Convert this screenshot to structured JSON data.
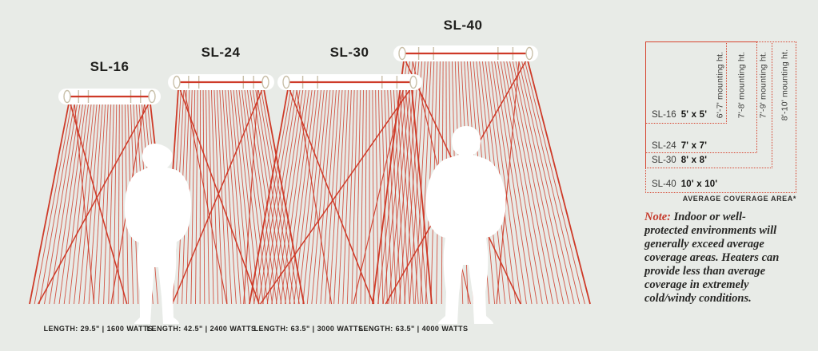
{
  "colors": {
    "background": "#e8ebe7",
    "red": "#ce3a28",
    "beige": "#c8bfa8",
    "white": "#ffffff",
    "text_dark": "#1e1e1c",
    "text_gray": "#3a3a38"
  },
  "heaters": [
    {
      "name": "SL-16",
      "spec": "LENGTH: 29.5\" | 1600 WATTS",
      "coverage": "5' x 5'",
      "mounting": "6'-7' mounting ht."
    },
    {
      "name": "SL-24",
      "spec": "LENGTH: 42.5\" | 2400 WATTS",
      "coverage": "7' x 7'",
      "mounting": "7'-8' mounting ht."
    },
    {
      "name": "SL-30",
      "spec": "LENGTH: 63.5\" | 3000 WATTS",
      "coverage": "8' x 8'",
      "mounting": "7'-9' mounting ht."
    },
    {
      "name": "SL-40",
      "spec": "LENGTH: 63.5\" | 4000 WATTS",
      "coverage": "10' x 10'",
      "mounting": "8'-10' mounting ht."
    }
  ],
  "panel": {
    "footnote": "AVERAGE COVERAGE AREA*"
  },
  "note": {
    "label": "Note:",
    "lines": [
      "Indoor or well-",
      "protected environments will",
      "generally exceed average",
      "coverage areas. Heaters can",
      "provide less than average",
      "coverage in extremely",
      "cold/windy conditions."
    ]
  }
}
